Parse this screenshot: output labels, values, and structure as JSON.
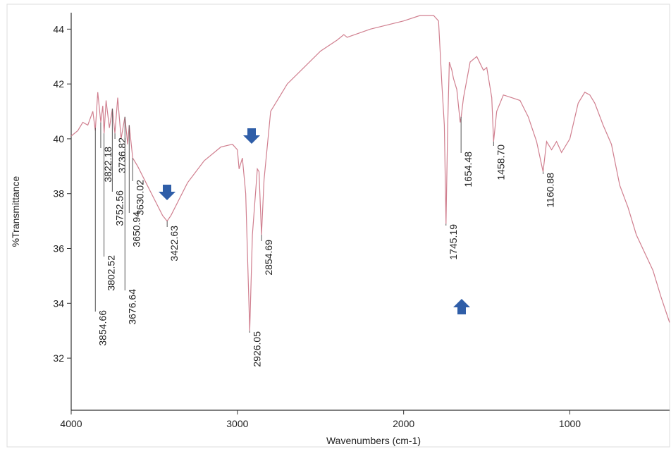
{
  "chart_data": {
    "type": "line",
    "x_label": "Wavenumbers (cm-1)",
    "y_label": "%Transmittance",
    "xlim": [
      4000,
      400
    ],
    "ylim": [
      30.1,
      44.6
    ],
    "xticks": [
      4000,
      3000,
      2000,
      1000
    ],
    "yticks": [
      32,
      34,
      36,
      38,
      40,
      42,
      44
    ],
    "series": [
      {
        "color": "#d07f8f",
        "x": [
          4000,
          3960,
          3930,
          3900,
          3870,
          3855,
          3840,
          3822,
          3810,
          3802,
          3790,
          3770,
          3752,
          3737,
          3720,
          3700,
          3677,
          3660,
          3651,
          3630,
          3600,
          3550,
          3500,
          3450,
          3423,
          3400,
          3350,
          3300,
          3200,
          3100,
          3030,
          3000,
          2990,
          2970,
          2950,
          2926,
          2910,
          2880,
          2870,
          2855,
          2840,
          2800,
          2700,
          2600,
          2500,
          2400,
          2360,
          2340,
          2200,
          2000,
          1900,
          1820,
          1790,
          1770,
          1755,
          1745,
          1735,
          1725,
          1710,
          1700,
          1680,
          1660,
          1654,
          1640,
          1600,
          1560,
          1520,
          1500,
          1470,
          1459,
          1440,
          1400,
          1350,
          1300,
          1250,
          1200,
          1161,
          1140,
          1110,
          1080,
          1050,
          1000,
          950,
          910,
          880,
          850,
          800,
          750,
          700,
          650,
          600,
          500,
          450,
          400
        ],
        "values": [
          40.1,
          40.3,
          40.6,
          40.5,
          41.0,
          40.3,
          41.7,
          40.6,
          41.2,
          40.2,
          41.4,
          40.4,
          41.1,
          40.2,
          41.5,
          40.0,
          40.8,
          39.8,
          40.5,
          39.3,
          39.0,
          38.4,
          37.8,
          37.2,
          37.0,
          37.2,
          37.8,
          38.4,
          39.2,
          39.7,
          39.8,
          39.6,
          38.9,
          39.3,
          38.0,
          33.0,
          36.5,
          38.9,
          38.8,
          36.5,
          38.5,
          41.0,
          42.0,
          42.6,
          43.2,
          43.6,
          43.8,
          43.7,
          44.0,
          44.3,
          44.5,
          44.5,
          44.3,
          42.0,
          40.5,
          36.9,
          40.5,
          42.8,
          42.5,
          42.2,
          41.8,
          40.6,
          40.8,
          41.5,
          42.8,
          43.0,
          42.5,
          42.6,
          41.5,
          39.9,
          41.0,
          41.6,
          41.5,
          41.4,
          40.8,
          39.9,
          38.8,
          39.9,
          39.6,
          39.9,
          39.5,
          40.0,
          41.3,
          41.7,
          41.6,
          41.3,
          40.5,
          39.8,
          38.3,
          37.5,
          36.5,
          35.2,
          34.2,
          33.3
        ]
      }
    ],
    "peaks": [
      {
        "value": 3854.66,
        "label": "3854.66",
        "y": 40.4
      },
      {
        "value": 3822.18,
        "label": "3822.18",
        "y": 40.6
      },
      {
        "value": 3802.52,
        "label": "3802.52",
        "y": 40.2
      },
      {
        "value": 3752.56,
        "label": "3752.56",
        "y": 41.1
      },
      {
        "value": 3736.82,
        "label": "3736.82",
        "y": 40.2
      },
      {
        "value": 3676.64,
        "label": "3676.64",
        "y": 40.8
      },
      {
        "value": 3650.94,
        "label": "3650.94",
        "y": 40.5
      },
      {
        "value": 3630.02,
        "label": "3630.02",
        "y": 39.3
      },
      {
        "value": 3422.63,
        "label": "3422.63",
        "y": 37.0
      },
      {
        "value": 2926.05,
        "label": "2926.05",
        "y": 33.0
      },
      {
        "value": 2854.69,
        "label": "2854.69",
        "y": 36.5
      },
      {
        "value": 1745.19,
        "label": "1745.19",
        "y": 36.9
      },
      {
        "value": 1654.48,
        "label": "1654.48",
        "y": 40.8
      },
      {
        "value": 1458.7,
        "label": "1458.70",
        "y": 39.9
      },
      {
        "value": 1160.88,
        "label": "1160.88",
        "y": 38.8
      }
    ]
  }
}
